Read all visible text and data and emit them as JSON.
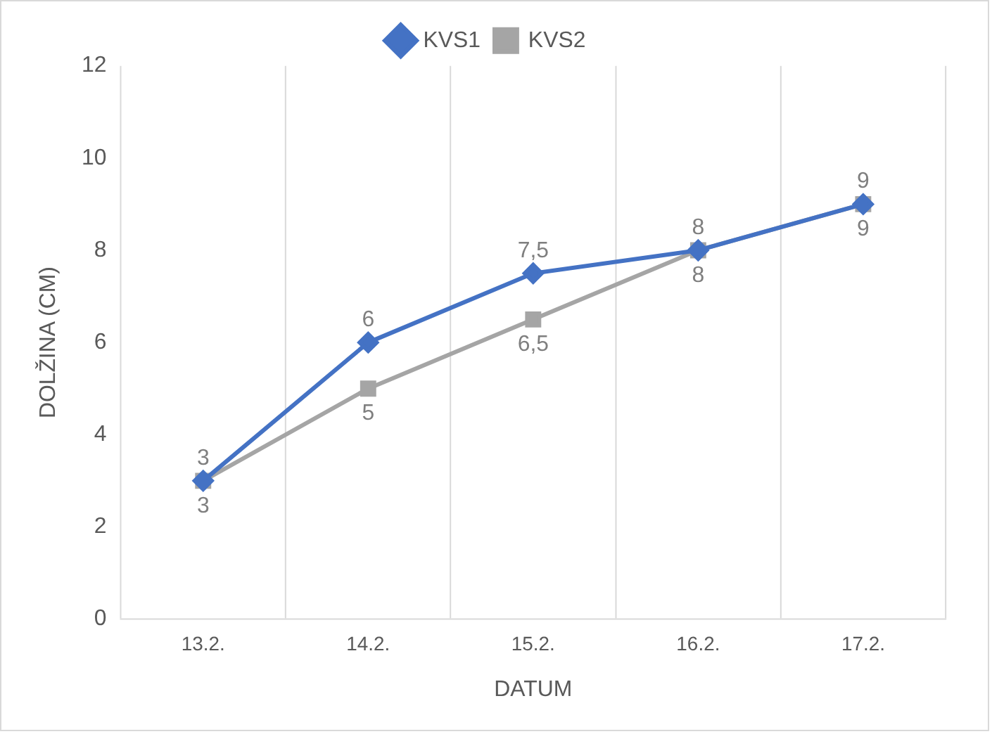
{
  "chart_data": {
    "type": "line",
    "xlabel": "DATUM",
    "ylabel": "DOLŽINA (CM)",
    "categories": [
      "13.2.",
      "14.2.",
      "15.2.",
      "16.2.",
      "17.2."
    ],
    "series": [
      {
        "name": "KVS1",
        "color": "#4472c4",
        "marker": "diamond",
        "values": [
          3,
          6,
          7.5,
          8,
          9
        ],
        "value_labels": [
          "3",
          "6",
          "7,5",
          "8",
          "9"
        ]
      },
      {
        "name": "KVS2",
        "color": "#a5a5a5",
        "marker": "square",
        "values": [
          3,
          5,
          6.5,
          8,
          9
        ],
        "value_labels": [
          "3",
          "5",
          "6,5",
          "8",
          "9"
        ]
      }
    ],
    "ylim": [
      0,
      12
    ],
    "yticks": [
      0,
      2,
      4,
      6,
      8,
      10,
      12
    ],
    "grid": "x",
    "legend": "top",
    "line_style": "solid"
  }
}
